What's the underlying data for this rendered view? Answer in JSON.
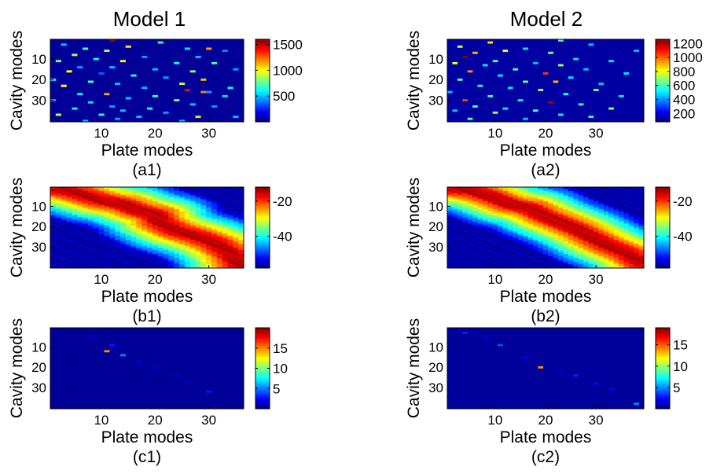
{
  "figure": {
    "column_titles": [
      "Model 1",
      "Model 2"
    ]
  },
  "chart_data": [
    {
      "id": "a1",
      "type": "heatmap",
      "panel_label": "(a1)",
      "model": "Model 1",
      "xlabel": "Plate modes",
      "ylabel": "Cavity modes",
      "xlim": [
        1,
        36
      ],
      "ylim": [
        1,
        40
      ],
      "xticks": [
        10,
        20,
        30
      ],
      "yticks": [
        10,
        20,
        30
      ],
      "colorbar": {
        "range": [
          0,
          1600
        ],
        "ticks": [
          500,
          1000,
          1500
        ]
      },
      "pattern": "sparse",
      "background_value": 40,
      "cells": [
        [
          12,
          1,
          1550
        ],
        [
          21,
          2,
          650
        ],
        [
          3,
          3,
          500
        ],
        [
          15,
          4,
          1050
        ],
        [
          7,
          5,
          700
        ],
        [
          26,
          5,
          550
        ],
        [
          30,
          5,
          1150
        ],
        [
          11,
          6,
          850
        ],
        [
          33,
          6,
          400
        ],
        [
          5,
          8,
          900
        ],
        [
          18,
          9,
          450
        ],
        [
          28,
          9,
          500
        ],
        [
          9,
          10,
          600
        ],
        [
          2,
          11,
          800
        ],
        [
          14,
          11,
          1000
        ],
        [
          24,
          12,
          600
        ],
        [
          31,
          12,
          700
        ],
        [
          6,
          14,
          450
        ],
        [
          12,
          14,
          500
        ],
        [
          20,
          15,
          500
        ],
        [
          35,
          15,
          450
        ],
        [
          4,
          16,
          1000
        ],
        [
          27,
          16,
          800
        ],
        [
          10,
          17,
          350
        ],
        [
          16,
          18,
          650
        ],
        [
          22,
          19,
          450
        ],
        [
          1,
          20,
          600
        ],
        [
          29,
          20,
          1100
        ],
        [
          8,
          21,
          700
        ],
        [
          25,
          22,
          900
        ],
        [
          13,
          22,
          500
        ],
        [
          3,
          23,
          1000
        ],
        [
          18,
          24,
          500
        ],
        [
          34,
          24,
          600
        ],
        [
          26,
          25,
          1400
        ],
        [
          29,
          26,
          1200
        ],
        [
          30,
          26,
          450
        ],
        [
          6,
          27,
          600
        ],
        [
          11,
          27,
          1150
        ],
        [
          20,
          28,
          700
        ],
        [
          33,
          28,
          550
        ],
        [
          15,
          29,
          500
        ],
        [
          1,
          30,
          450
        ],
        [
          24,
          30,
          750
        ],
        [
          8,
          31,
          550
        ],
        [
          27,
          32,
          500
        ],
        [
          12,
          33,
          450
        ],
        [
          31,
          33,
          450
        ],
        [
          5,
          34,
          600
        ],
        [
          19,
          34,
          600
        ],
        [
          14,
          35,
          500
        ],
        [
          22,
          36,
          450
        ],
        [
          2,
          37,
          900
        ],
        [
          10,
          37,
          650
        ],
        [
          17,
          38,
          500
        ],
        [
          28,
          38,
          1050
        ],
        [
          35,
          38,
          500
        ],
        [
          13,
          39,
          450
        ],
        [
          7,
          40,
          500
        ],
        [
          25,
          40,
          500
        ]
      ]
    },
    {
      "id": "a2",
      "type": "heatmap",
      "panel_label": "(a2)",
      "model": "Model 2",
      "xlabel": "Plate modes",
      "ylabel": "Cavity modes",
      "xlim": [
        1,
        39
      ],
      "ylim": [
        1,
        40
      ],
      "xticks": [
        10,
        20,
        30
      ],
      "yticks": [
        10,
        20,
        30
      ],
      "colorbar": {
        "range": [
          80,
          1260
        ],
        "ticks": [
          200,
          400,
          600,
          800,
          1000,
          1200
        ]
      },
      "pattern": "sparse",
      "background_value": 120,
      "cells": [
        [
          9,
          2,
          850
        ],
        [
          23,
          1,
          600
        ],
        [
          3,
          4,
          750
        ],
        [
          29,
          3,
          450
        ],
        [
          16,
          5,
          500
        ],
        [
          12,
          6,
          800
        ],
        [
          38,
          6,
          450
        ],
        [
          6,
          7,
          900
        ],
        [
          21,
          7,
          650
        ],
        [
          4,
          9,
          1250
        ],
        [
          26,
          10,
          500
        ],
        [
          10,
          11,
          600
        ],
        [
          33,
          11,
          500
        ],
        [
          2,
          12,
          800
        ],
        [
          18,
          12,
          450
        ],
        [
          8,
          13,
          500
        ],
        [
          23,
          13,
          700
        ],
        [
          14,
          15,
          600
        ],
        [
          28,
          15,
          450
        ],
        [
          5,
          16,
          950
        ],
        [
          20,
          17,
          1050
        ],
        [
          36,
          17,
          500
        ],
        [
          11,
          18,
          500
        ],
        [
          25,
          19,
          500
        ],
        [
          3,
          20,
          600
        ],
        [
          16,
          21,
          650
        ],
        [
          22,
          21,
          900
        ],
        [
          31,
          22,
          450
        ],
        [
          7,
          23,
          550
        ],
        [
          13,
          24,
          500
        ],
        [
          19,
          25,
          700
        ],
        [
          30,
          25,
          650
        ],
        [
          1,
          26,
          450
        ],
        [
          24,
          27,
          550
        ],
        [
          9,
          28,
          600
        ],
        [
          35,
          28,
          500
        ],
        [
          4,
          30,
          1050
        ],
        [
          15,
          30,
          500
        ],
        [
          21,
          31,
          1200
        ],
        [
          27,
          32,
          550
        ],
        [
          6,
          33,
          600
        ],
        [
          12,
          34,
          500
        ],
        [
          33,
          34,
          700
        ],
        [
          2,
          35,
          450
        ],
        [
          18,
          35,
          600
        ],
        [
          10,
          36,
          700
        ],
        [
          23,
          37,
          500
        ],
        [
          29,
          38,
          550
        ],
        [
          5,
          39,
          600
        ],
        [
          16,
          39,
          450
        ]
      ]
    },
    {
      "id": "b1",
      "type": "heatmap",
      "panel_label": "(b1)",
      "model": "Model 1",
      "xlabel": "Plate modes",
      "ylabel": "Cavity modes",
      "xlim": [
        1,
        36
      ],
      "ylim": [
        1,
        40
      ],
      "xticks": [
        10,
        20,
        30
      ],
      "yticks": [
        10,
        20,
        30
      ],
      "colorbar": {
        "range": [
          -58,
          -12
        ],
        "ticks": [
          -20,
          -40
        ]
      },
      "pattern": "diagonal",
      "diagonal": {
        "peak": -15,
        "floor": -56,
        "width": 2.5,
        "falloff": 5.5,
        "path": [
          [
            1,
            1
          ],
          [
            5,
            3
          ],
          [
            10,
            7
          ],
          [
            14,
            9
          ],
          [
            17,
            12
          ],
          [
            20,
            14
          ],
          [
            21,
            18
          ],
          [
            24,
            22
          ],
          [
            28,
            25
          ],
          [
            31,
            28
          ],
          [
            34,
            33
          ],
          [
            36,
            40
          ]
        ]
      }
    },
    {
      "id": "b2",
      "type": "heatmap",
      "panel_label": "(b2)",
      "model": "Model 2",
      "xlabel": "Plate modes",
      "ylabel": "Cavity modes",
      "xlim": [
        1,
        39
      ],
      "ylim": [
        1,
        40
      ],
      "xticks": [
        10,
        20,
        30
      ],
      "yticks": [
        10,
        20,
        30
      ],
      "colorbar": {
        "range": [
          -58,
          -12
        ],
        "ticks": [
          -20,
          -40
        ]
      },
      "pattern": "diagonal",
      "diagonal": {
        "peak": -15,
        "floor": -56,
        "width": 2.5,
        "falloff": 5.5,
        "path": [
          [
            1,
            1
          ],
          [
            5,
            2
          ],
          [
            9,
            5
          ],
          [
            13,
            9
          ],
          [
            17,
            11
          ],
          [
            20,
            15
          ],
          [
            23,
            18
          ],
          [
            26,
            21
          ],
          [
            29,
            25
          ],
          [
            32,
            29
          ],
          [
            36,
            33
          ],
          [
            39,
            38
          ]
        ]
      }
    },
    {
      "id": "c1",
      "type": "heatmap",
      "panel_label": "(c1)",
      "model": "Model 1",
      "xlabel": "Plate modes",
      "ylabel": "Cavity modes",
      "xlim": [
        1,
        36
      ],
      "ylim": [
        1,
        40
      ],
      "xticks": [
        10,
        20,
        30
      ],
      "yticks": [
        10,
        20,
        30
      ],
      "colorbar": {
        "range": [
          0,
          20
        ],
        "ticks": [
          5,
          10,
          15
        ]
      },
      "pattern": "sparse",
      "background_value": 0.5,
      "cells": [
        [
          11,
          12,
          15
        ],
        [
          14,
          14,
          5
        ],
        [
          12,
          9,
          3
        ],
        [
          17,
          17,
          2
        ],
        [
          20,
          20,
          1.5
        ],
        [
          24,
          24,
          1.5
        ],
        [
          30,
          32,
          3
        ],
        [
          8,
          5,
          1.5
        ],
        [
          26,
          27,
          1.5
        ]
      ]
    },
    {
      "id": "c2",
      "type": "heatmap",
      "panel_label": "(c2)",
      "model": "Model 2",
      "xlabel": "Plate modes",
      "ylabel": "Cavity modes",
      "xlim": [
        1,
        39
      ],
      "ylim": [
        1,
        40
      ],
      "xticks": [
        10,
        20,
        30
      ],
      "yticks": [
        10,
        20,
        30
      ],
      "colorbar": {
        "range": [
          0,
          19
        ],
        "ticks": [
          5,
          10,
          15
        ]
      },
      "pattern": "sparse",
      "background_value": 0.5,
      "cells": [
        [
          19,
          20,
          14
        ],
        [
          4,
          3,
          3
        ],
        [
          11,
          9,
          4
        ],
        [
          16,
          15,
          2
        ],
        [
          26,
          24,
          3
        ],
        [
          30,
          28,
          2.5
        ],
        [
          33,
          31,
          2
        ],
        [
          38,
          38,
          5
        ],
        [
          23,
          22,
          1.5
        ],
        [
          8,
          6,
          1.5
        ]
      ]
    }
  ]
}
